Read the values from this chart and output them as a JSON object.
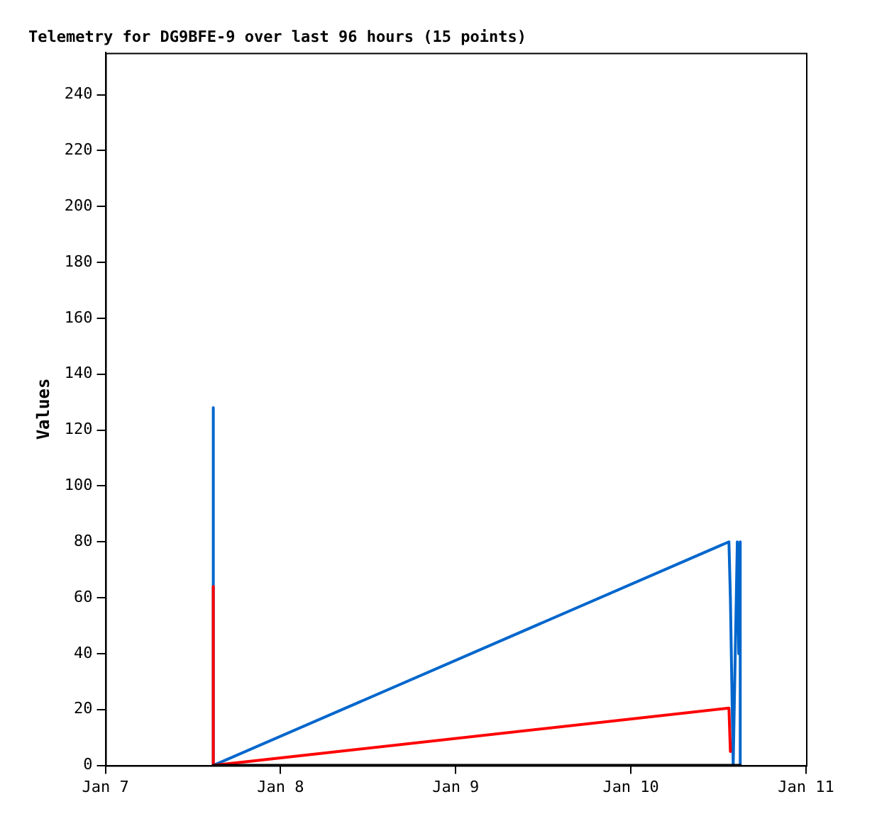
{
  "chart_data": {
    "type": "line",
    "title": "Telemetry for DG9BFE-9 over last 96 hours (15 points)",
    "ylabel": "Values",
    "series": [
      {
        "color": "#0066cc",
        "x": [
          "--01-07T14:47",
          "--01-07T14:47",
          "--01-10T13:26",
          "--01-10T13:38",
          "--01-10T14:01",
          "--01-10T14:35",
          "--01-10T14:47",
          "--01-10T14:59",
          "--01-10T14:59"
        ],
        "values": [
          128,
          0,
          80,
          60,
          0,
          80,
          40,
          80,
          0
        ]
      },
      {
        "color": "#ff0000",
        "x": [
          "--01-07T14:47",
          "--01-07T14:47",
          "--01-07T14:47",
          "--01-10T13:26",
          "--01-10T13:38"
        ],
        "values": [
          64,
          34,
          0,
          20.5,
          5
        ]
      },
      {
        "color": "#000000",
        "x": [
          "--01-07T14:47",
          "--01-10T14:59"
        ],
        "values": [
          0,
          0
        ]
      }
    ],
    "xlim": [
      "--01-07",
      "--01-11"
    ],
    "xticks": [
      {
        "value": "--01-07",
        "label": "Jan 7"
      },
      {
        "value": "--01-08",
        "label": "Jan 8"
      },
      {
        "value": "--01-09",
        "label": "Jan 9"
      },
      {
        "value": "--01-10",
        "label": "Jan 10"
      },
      {
        "value": "--01-11",
        "label": "Jan 11"
      }
    ],
    "ylim": [
      0,
      255
    ],
    "yticks": [
      0,
      20,
      40,
      60,
      80,
      100,
      120,
      140,
      160,
      180,
      200,
      220,
      240
    ],
    "grid": false,
    "legend": false,
    "marker": "none",
    "line_style": "solid"
  }
}
